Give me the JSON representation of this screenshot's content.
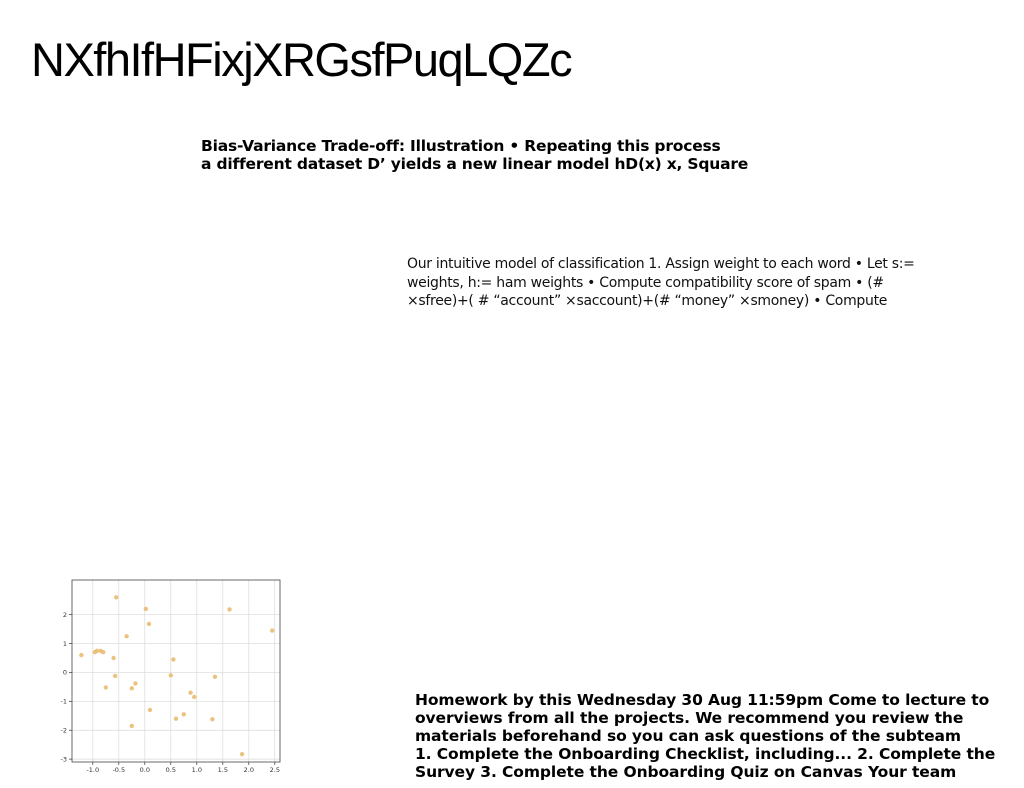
{
  "page": {
    "title": "NXfhIfHFixjXRGsfPuqLQZc",
    "block1": "Bias-Variance Trade-off: Illustration • Repeating this process\na different dataset D’ yields a new linear model hD(x) x, Square",
    "block2": "Our intuitive model of classification 1. Assign weight to each word • Let s:=\nweights, h:= ham weights • Compute compatibility score of spam • (#\n×sfree)+( # “account” ×saccount)+(# “money” ×smoney) • Compute",
    "block3": "Homework by this Wednesday 30 Aug 11:59pm Come to lecture to\noverviews from all the projects. We recommend you review the\nmaterials beforehand so you can ask questions of the subteam\n1. Complete the Onboarding Checklist, including... 2. Complete the\nSurvey 3. Complete the Onboarding Quiz on Canvas Your team"
  },
  "chart_data": {
    "type": "scatter",
    "color": "#e8b86a",
    "grid": true,
    "xlim": [
      -1.4,
      2.6
    ],
    "ylim": [
      -3.1,
      3.2
    ],
    "xticks": [
      "-1.0",
      "-0.5",
      "0.0",
      "0.5",
      "1.0",
      "1.5",
      "2.0",
      "2.5"
    ],
    "yticks": [
      "-3",
      "-2",
      "-1",
      "0",
      "1",
      "2"
    ],
    "points": [
      [
        -1.22,
        0.6
      ],
      [
        -0.96,
        0.7
      ],
      [
        -0.92,
        0.75
      ],
      [
        -0.85,
        0.75
      ],
      [
        -0.8,
        0.7
      ],
      [
        -0.75,
        -0.52
      ],
      [
        -0.6,
        0.5
      ],
      [
        -0.55,
        2.6
      ],
      [
        -0.57,
        -0.12
      ],
      [
        -0.35,
        1.25
      ],
      [
        -0.25,
        -0.55
      ],
      [
        -0.25,
        -1.85
      ],
      [
        -0.18,
        -0.38
      ],
      [
        0.02,
        2.2
      ],
      [
        0.08,
        1.68
      ],
      [
        0.1,
        -1.3
      ],
      [
        0.5,
        -0.1
      ],
      [
        0.55,
        0.45
      ],
      [
        0.6,
        -1.6
      ],
      [
        0.75,
        -1.45
      ],
      [
        0.88,
        -0.7
      ],
      [
        0.95,
        -0.85
      ],
      [
        1.3,
        -1.62
      ],
      [
        1.35,
        -0.15
      ],
      [
        1.63,
        2.18
      ],
      [
        1.87,
        -2.83
      ],
      [
        2.45,
        1.45
      ]
    ]
  }
}
